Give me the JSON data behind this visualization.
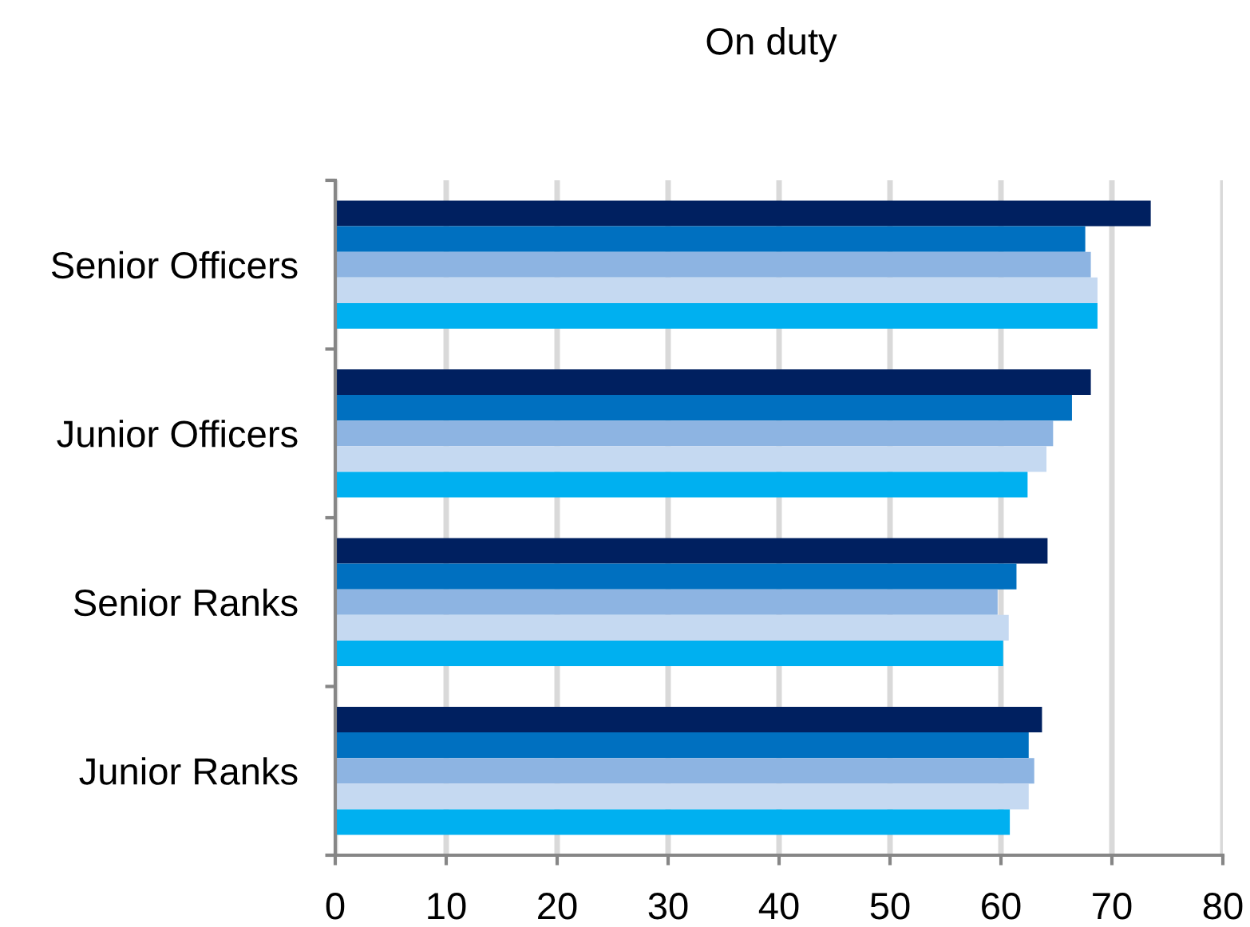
{
  "chart_data": {
    "type": "bar",
    "orientation": "horizontal",
    "title": "On duty",
    "categories": [
      "Senior Officers",
      "Junior Officers",
      "Senior Ranks",
      "Junior Ranks"
    ],
    "series": [
      {
        "color": "#002060",
        "values": [
          73.5,
          68.1,
          64.2,
          63.7
        ]
      },
      {
        "color": "#0070c0",
        "values": [
          67.6,
          66.4,
          61.4,
          62.5
        ]
      },
      {
        "color": "#8db4e2",
        "values": [
          68.1,
          64.7,
          59.7,
          63.0
        ]
      },
      {
        "color": "#c5d9f1",
        "values": [
          68.7,
          64.1,
          60.7,
          62.5
        ]
      },
      {
        "color": "#00b0f0",
        "values": [
          68.7,
          62.4,
          60.2,
          60.8
        ]
      }
    ],
    "xlim": [
      0,
      80
    ],
    "xticks": [
      0,
      10,
      20,
      30,
      40,
      50,
      60,
      70,
      80
    ],
    "grid": "x"
  }
}
